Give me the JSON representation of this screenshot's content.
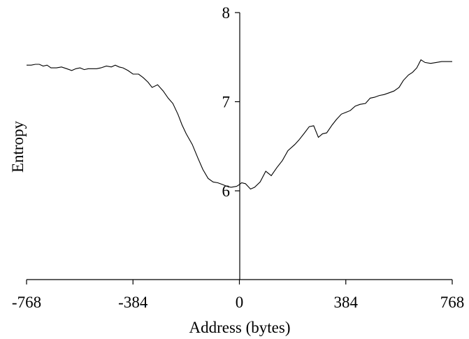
{
  "chart_data": {
    "type": "line",
    "title": "",
    "xlabel": "Address (bytes)",
    "ylabel": "Entropy",
    "xlim": [
      -768,
      768
    ],
    "ylim": [
      5,
      8
    ],
    "xticks": [
      -768,
      -384,
      0,
      384,
      768
    ],
    "xtick_labels": [
      "-768",
      "-384",
      "0",
      "384",
      "768"
    ],
    "yticks": [
      6,
      7,
      8
    ],
    "ytick_labels": [
      "6",
      "7",
      "8"
    ],
    "grid": false,
    "legend": "none",
    "colors": {
      "line": "#000000",
      "axis": "#000000"
    },
    "series": [
      {
        "x": [
          -768,
          -751,
          -736,
          -722,
          -708,
          -694,
          -680,
          -660,
          -642,
          -623,
          -605,
          -590,
          -575,
          -560,
          -545,
          -530,
          -515,
          -500,
          -480,
          -462,
          -448,
          -434,
          -420,
          -402,
          -384,
          -364,
          -347,
          -330,
          -315,
          -295,
          -275,
          -257,
          -240,
          -222,
          -207,
          -192,
          -170,
          -150,
          -132,
          -113,
          -95,
          -78,
          -60,
          -45,
          -30,
          -10,
          0,
          8,
          22,
          40,
          55,
          75,
          95,
          115,
          135,
          155,
          175,
          200,
          215,
          235,
          252,
          268,
          285,
          300,
          315,
          335,
          350,
          368,
          384,
          400,
          418,
          435,
          455,
          472,
          488,
          505,
          522,
          540,
          558,
          576,
          592,
          610,
          625,
          640,
          655,
          670,
          690,
          710,
          730,
          748,
          768
        ],
        "y": [
          7.41,
          7.41,
          7.42,
          7.42,
          7.4,
          7.41,
          7.38,
          7.38,
          7.39,
          7.37,
          7.35,
          7.37,
          7.38,
          7.36,
          7.37,
          7.37,
          7.37,
          7.38,
          7.4,
          7.39,
          7.41,
          7.39,
          7.38,
          7.35,
          7.31,
          7.31,
          7.27,
          7.22,
          7.16,
          7.19,
          7.12,
          7.04,
          6.98,
          6.86,
          6.74,
          6.64,
          6.52,
          6.37,
          6.24,
          6.14,
          6.1,
          6.09,
          6.07,
          6.05,
          6.04,
          6.05,
          6.07,
          6.09,
          6.08,
          6.02,
          6.04,
          6.1,
          6.22,
          6.17,
          6.26,
          6.34,
          6.45,
          6.52,
          6.57,
          6.65,
          6.72,
          6.73,
          6.6,
          6.64,
          6.65,
          6.74,
          6.8,
          6.86,
          6.88,
          6.9,
          6.95,
          6.97,
          6.98,
          7.04,
          7.05,
          7.07,
          7.08,
          7.1,
          7.12,
          7.16,
          7.24,
          7.3,
          7.33,
          7.38,
          7.47,
          7.44,
          7.43,
          7.44,
          7.45,
          7.45,
          7.45
        ]
      }
    ]
  }
}
